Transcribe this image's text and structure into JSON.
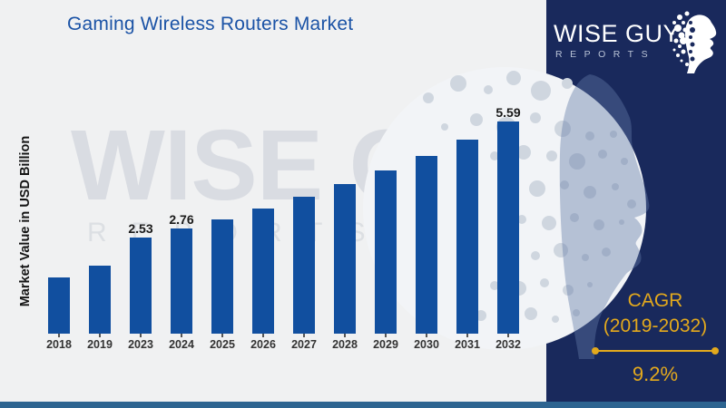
{
  "title": "Gaming Wireless Routers Market",
  "watermark": {
    "line1": "WISE GUY",
    "line2": "REPORTS"
  },
  "logo": {
    "line1": "WISE GUY",
    "line2": "REPORTS"
  },
  "cagr": {
    "label": "CAGR",
    "range": "(2019-2032)",
    "value": "9.2%"
  },
  "chart_data": {
    "type": "bar",
    "title": "Gaming Wireless Routers Market",
    "ylabel": "Market Value in USD Billion",
    "categories": [
      "2018",
      "2019",
      "2023",
      "2024",
      "2025",
      "2026",
      "2027",
      "2028",
      "2029",
      "2030",
      "2031",
      "2032"
    ],
    "values": [
      1.48,
      1.8,
      2.53,
      2.76,
      3.01,
      3.29,
      3.6,
      3.93,
      4.29,
      4.68,
      5.11,
      5.59
    ],
    "bar_labels": [
      "",
      "",
      "2.53",
      "2.76",
      "",
      "",
      "",
      "",
      "",
      "",
      "",
      "5.59"
    ],
    "ylim": [
      0,
      6
    ],
    "grid": false,
    "legend": false,
    "bar_color": "#114f9f"
  },
  "colors": {
    "background": "#f0f1f2",
    "title_blue": "#1b53a6",
    "bar_blue": "#114f9f",
    "panel_navy": "#19295c",
    "accent_gold": "#e3a91d",
    "bottom_stripe": "#2d6490",
    "watermark_gray": "#d9dce2"
  }
}
